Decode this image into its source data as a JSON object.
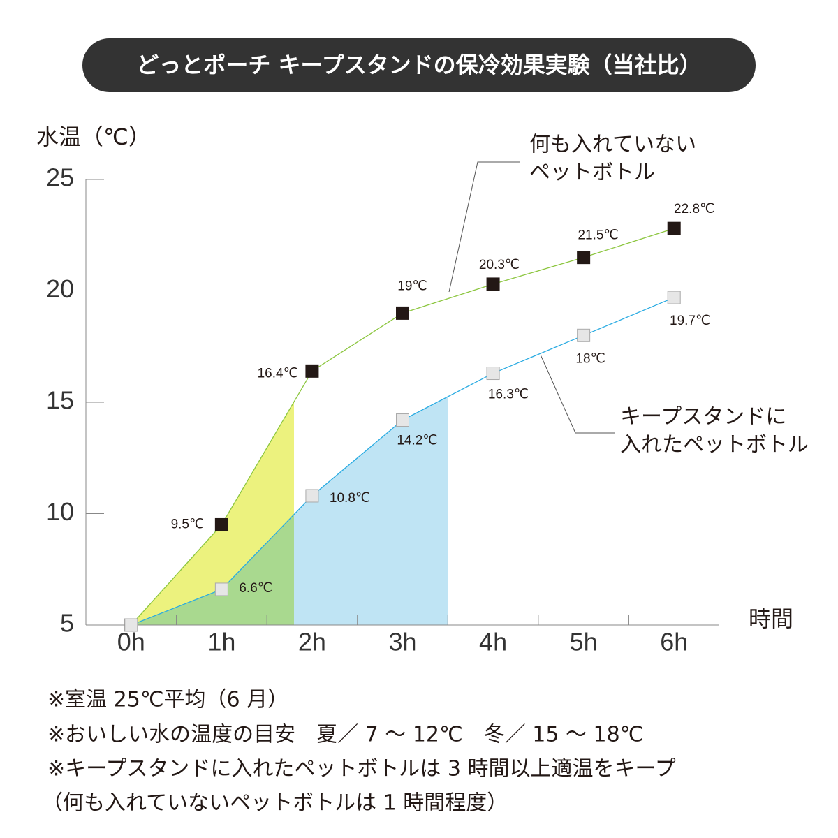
{
  "chart_data": {
    "type": "line",
    "title": "どっとポーチ キープスタンドの保冷効果実験（当社比）",
    "y_label": "水温（℃）",
    "x_label": "時間",
    "categories": [
      "0h",
      "1h",
      "2h",
      "3h",
      "4h",
      "5h",
      "6h"
    ],
    "ylim": [
      5,
      25
    ],
    "yticks": [
      5,
      10,
      15,
      20,
      25
    ],
    "series": [
      {
        "name": [
          "何も入れていない",
          "ペットボトル"
        ],
        "color": "#8cc63f",
        "marker_color": "#231815",
        "values": [
          5,
          9.5,
          16.4,
          19,
          20.3,
          21.5,
          22.8
        ],
        "value_labels": [
          null,
          "9.5℃",
          "16.4℃",
          "19℃",
          "20.3℃",
          "21.5℃",
          "22.8℃"
        ]
      },
      {
        "name": [
          "キープスタンドに",
          "入れたペットボトル"
        ],
        "color": "#29abe2",
        "marker_color": "#e6e6e6",
        "values": [
          5,
          6.6,
          10.8,
          14.2,
          16.3,
          18,
          19.7
        ],
        "value_labels": [
          null,
          "6.6℃",
          "10.8℃",
          "14.2℃",
          "16.3℃",
          "18℃",
          "19.7℃"
        ]
      }
    ],
    "areas": [
      {
        "series": 0,
        "from": 0,
        "to": 1.8,
        "color": "#ecf27e"
      },
      {
        "series": 1,
        "from": 0,
        "to": 1.8,
        "color": "#a9d98f"
      },
      {
        "series": 1,
        "from": 1.8,
        "to": 3.5,
        "color": "#bfe4f4"
      }
    ],
    "notes": [
      "※室温 25℃平均（6 月）",
      "※おいしい水の温度の目安　夏／ 7 ～ 12℃　冬／ 15 ～ 18℃",
      "※キープスタンドに入れたペットボトルは 3 時間以上適温をキープ",
      "（何も入れていないペットボトルは 1 時間程度）"
    ]
  }
}
